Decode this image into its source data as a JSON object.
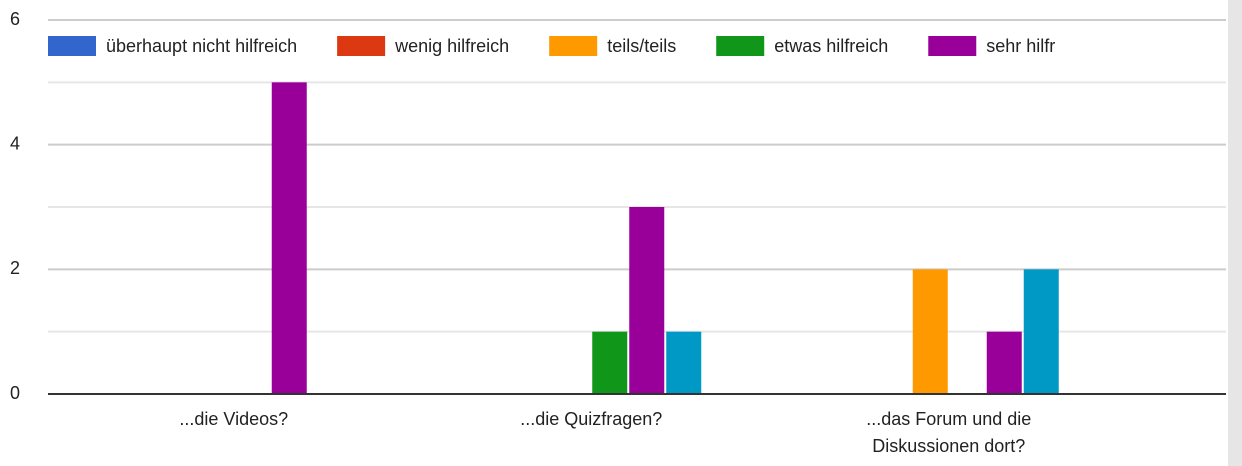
{
  "chart_data": {
    "type": "bar",
    "categories": [
      "...die Videos?",
      "...die Quizfragen?",
      "...das Forum und die Diskussionen dort?",
      ".."
    ],
    "series": [
      {
        "name": "überhaupt nicht hilfreich",
        "color": "#3366cc",
        "values": [
          0,
          0,
          0,
          null
        ]
      },
      {
        "name": "wenig hilfreich",
        "color": "#dc3912",
        "values": [
          0,
          0,
          0,
          null
        ]
      },
      {
        "name": "teils/teils",
        "color": "#ff9900",
        "values": [
          0,
          0,
          2,
          null
        ]
      },
      {
        "name": "etwas hilfreich",
        "color": "#109618",
        "values": [
          0,
          1,
          0,
          null
        ]
      },
      {
        "name": "sehr hilfr",
        "color": "#990099",
        "values": [
          5,
          3,
          1,
          null
        ]
      },
      {
        "color": "#0099c6",
        "values": [
          0,
          1,
          2,
          null
        ]
      }
    ],
    "ylim": [
      0,
      6
    ],
    "yticks": [
      0,
      2,
      4,
      6
    ],
    "grid": true,
    "legend": "top"
  }
}
